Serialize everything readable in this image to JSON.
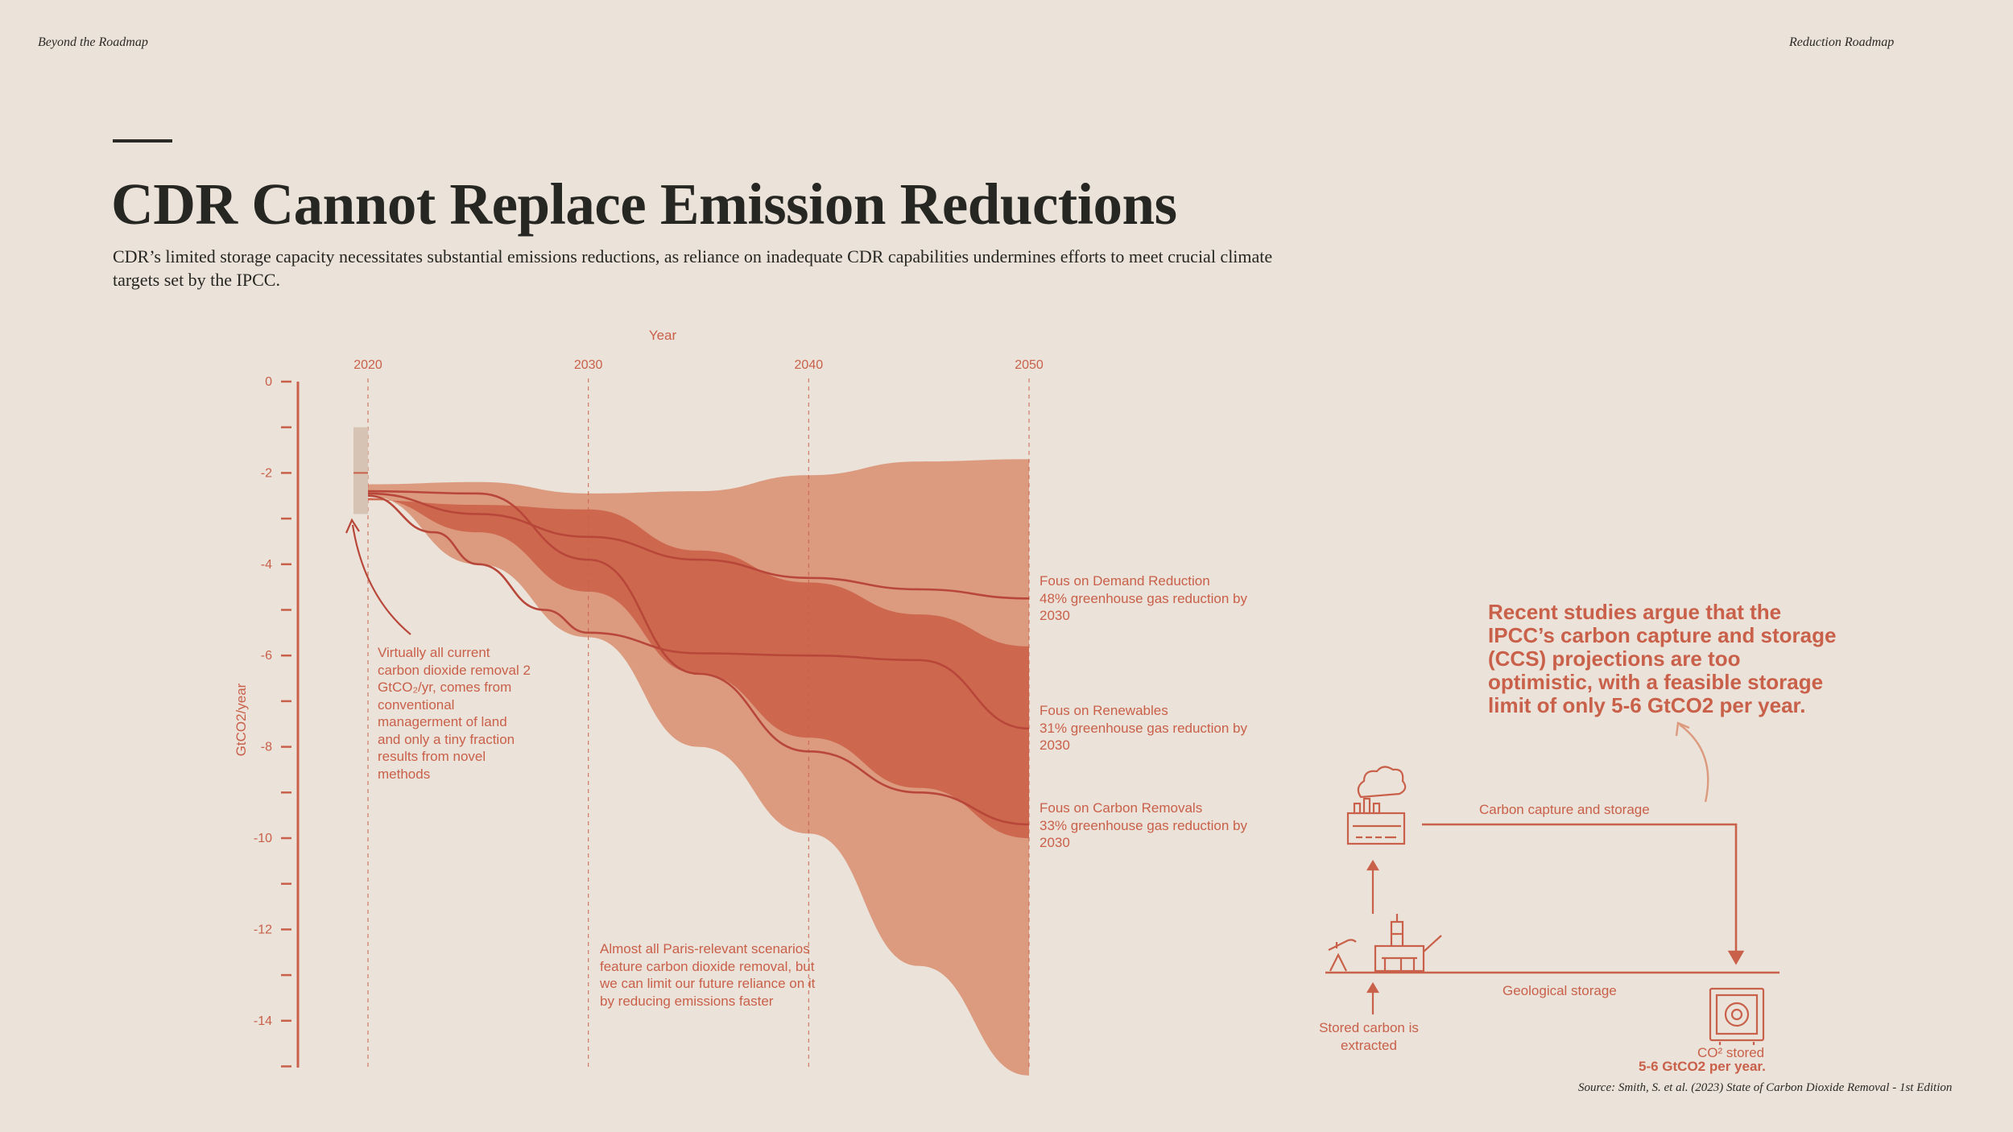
{
  "header": {
    "left": "Beyond the Roadmap",
    "right": "Reduction Roadmap"
  },
  "title": "CDR Cannot Replace Emission Reductions",
  "subtitle": "CDR’s limited storage capacity necessitates substantial emissions reductions, as reliance on inadequate CDR capabilities undermines efforts to meet crucial climate targets set by the IPCC.",
  "chart_data": {
    "type": "area",
    "xlabel": "Year",
    "ylabel": "GtCO2/year",
    "xlim": [
      2020,
      2050
    ],
    "ylim": [
      -15,
      0
    ],
    "x_ticks": [
      2020,
      2030,
      2040,
      2050
    ],
    "y_ticks": [
      0,
      -2,
      -4,
      -6,
      -8,
      -10,
      -12,
      -14
    ],
    "grid": "dashed vertical lines at decade ticks",
    "current_removal": {
      "x": 2020,
      "value": -2,
      "range": [
        -1,
        -2.9
      ]
    },
    "bands": [
      {
        "name": "outer range",
        "color": "#dc9a7f",
        "upper": [
          [
            2020,
            -2.25
          ],
          [
            2025,
            -2.2
          ],
          [
            2030,
            -2.45
          ],
          [
            2035,
            -2.4
          ],
          [
            2040,
            -2.05
          ],
          [
            2045,
            -1.75
          ],
          [
            2050,
            -1.7
          ]
        ],
        "lower": [
          [
            2020,
            -2.5
          ],
          [
            2025,
            -4.0
          ],
          [
            2030,
            -5.6
          ],
          [
            2035,
            -8.0
          ],
          [
            2040,
            -9.9
          ],
          [
            2045,
            -12.8
          ],
          [
            2050,
            -15.2
          ]
        ]
      },
      {
        "name": "inner range",
        "color": "#cd684f",
        "upper": [
          [
            2020,
            -2.6
          ],
          [
            2025,
            -2.7
          ],
          [
            2030,
            -2.8
          ],
          [
            2035,
            -3.7
          ],
          [
            2040,
            -4.4
          ],
          [
            2045,
            -5.1
          ],
          [
            2050,
            -5.8
          ]
        ],
        "lower": [
          [
            2020,
            -2.55
          ],
          [
            2025,
            -3.3
          ],
          [
            2030,
            -4.6
          ],
          [
            2035,
            -6.4
          ],
          [
            2040,
            -7.8
          ],
          [
            2045,
            -8.9
          ],
          [
            2050,
            -10.0
          ]
        ]
      }
    ],
    "series": [
      {
        "name": "Fous on Demand Reduction",
        "values": [
          [
            2020,
            -2.45
          ],
          [
            2025,
            -2.9
          ],
          [
            2030,
            -3.4
          ],
          [
            2035,
            -3.9
          ],
          [
            2040,
            -4.3
          ],
          [
            2045,
            -4.55
          ],
          [
            2050,
            -4.75
          ]
        ]
      },
      {
        "name": "Fous on Renewables",
        "values": [
          [
            2020,
            -2.5
          ],
          [
            2023,
            -3.3
          ],
          [
            2025,
            -4.0
          ],
          [
            2028,
            -5.0
          ],
          [
            2030,
            -5.5
          ],
          [
            2035,
            -5.95
          ],
          [
            2040,
            -6.0
          ],
          [
            2045,
            -6.1
          ],
          [
            2050,
            -7.6
          ]
        ]
      },
      {
        "name": "Fous on Carbon Removals",
        "values": [
          [
            2020,
            -2.4
          ],
          [
            2025,
            -2.45
          ],
          [
            2030,
            -3.9
          ],
          [
            2035,
            -6.4
          ],
          [
            2040,
            -8.1
          ],
          [
            2045,
            -9.0
          ],
          [
            2050,
            -9.7
          ]
        ]
      }
    ]
  },
  "scenarios": [
    {
      "title": "Fous on Demand Reduction",
      "text": "48% greenhouse gas reduction by 2030"
    },
    {
      "title": "Fous on Renewables",
      "text": "31% greenhouse gas reduction by 2030"
    },
    {
      "title": "Fous on Carbon Removals",
      "text": "33% greenhouse gas reduction by 2030"
    }
  ],
  "notes": {
    "cdr": "Virtually all current carbon dioxide removal 2 GtCO₂/yr, comes from conventional managerment of land and only a tiny fraction results from novel methods",
    "paris": "Almost all Paris-relevant scenarios feature carbon dioxide removal, but we can limit our future reliance on it by reducing emissions faster"
  },
  "callout": "Recent studies argue that the IPCC’s carbon capture and storage (CCS) projections are too optimistic, with a feasible storage limit of only  5-6 GtCO2 per year.",
  "diagram": {
    "ccs_label": "Carbon capture and storage",
    "geo_label": "Geological storage",
    "stored_label": "Stored carbon is extracted",
    "co2_label": "CO² stored",
    "co2_amount": "5-6 GtCO2 per year."
  },
  "source": "Source: Smith, S. et al. (2023) State of Carbon Dioxide Removal - 1st Edition",
  "colors": {
    "accent": "#c9604a",
    "band_outer": "#dc9a7f",
    "band_inner": "#cd684f",
    "line": "#b8473a",
    "background": "#ebe2d9",
    "text": "#262622"
  },
  "icons": [
    "factory-icon",
    "oil-rig-icon",
    "safe-icon"
  ]
}
